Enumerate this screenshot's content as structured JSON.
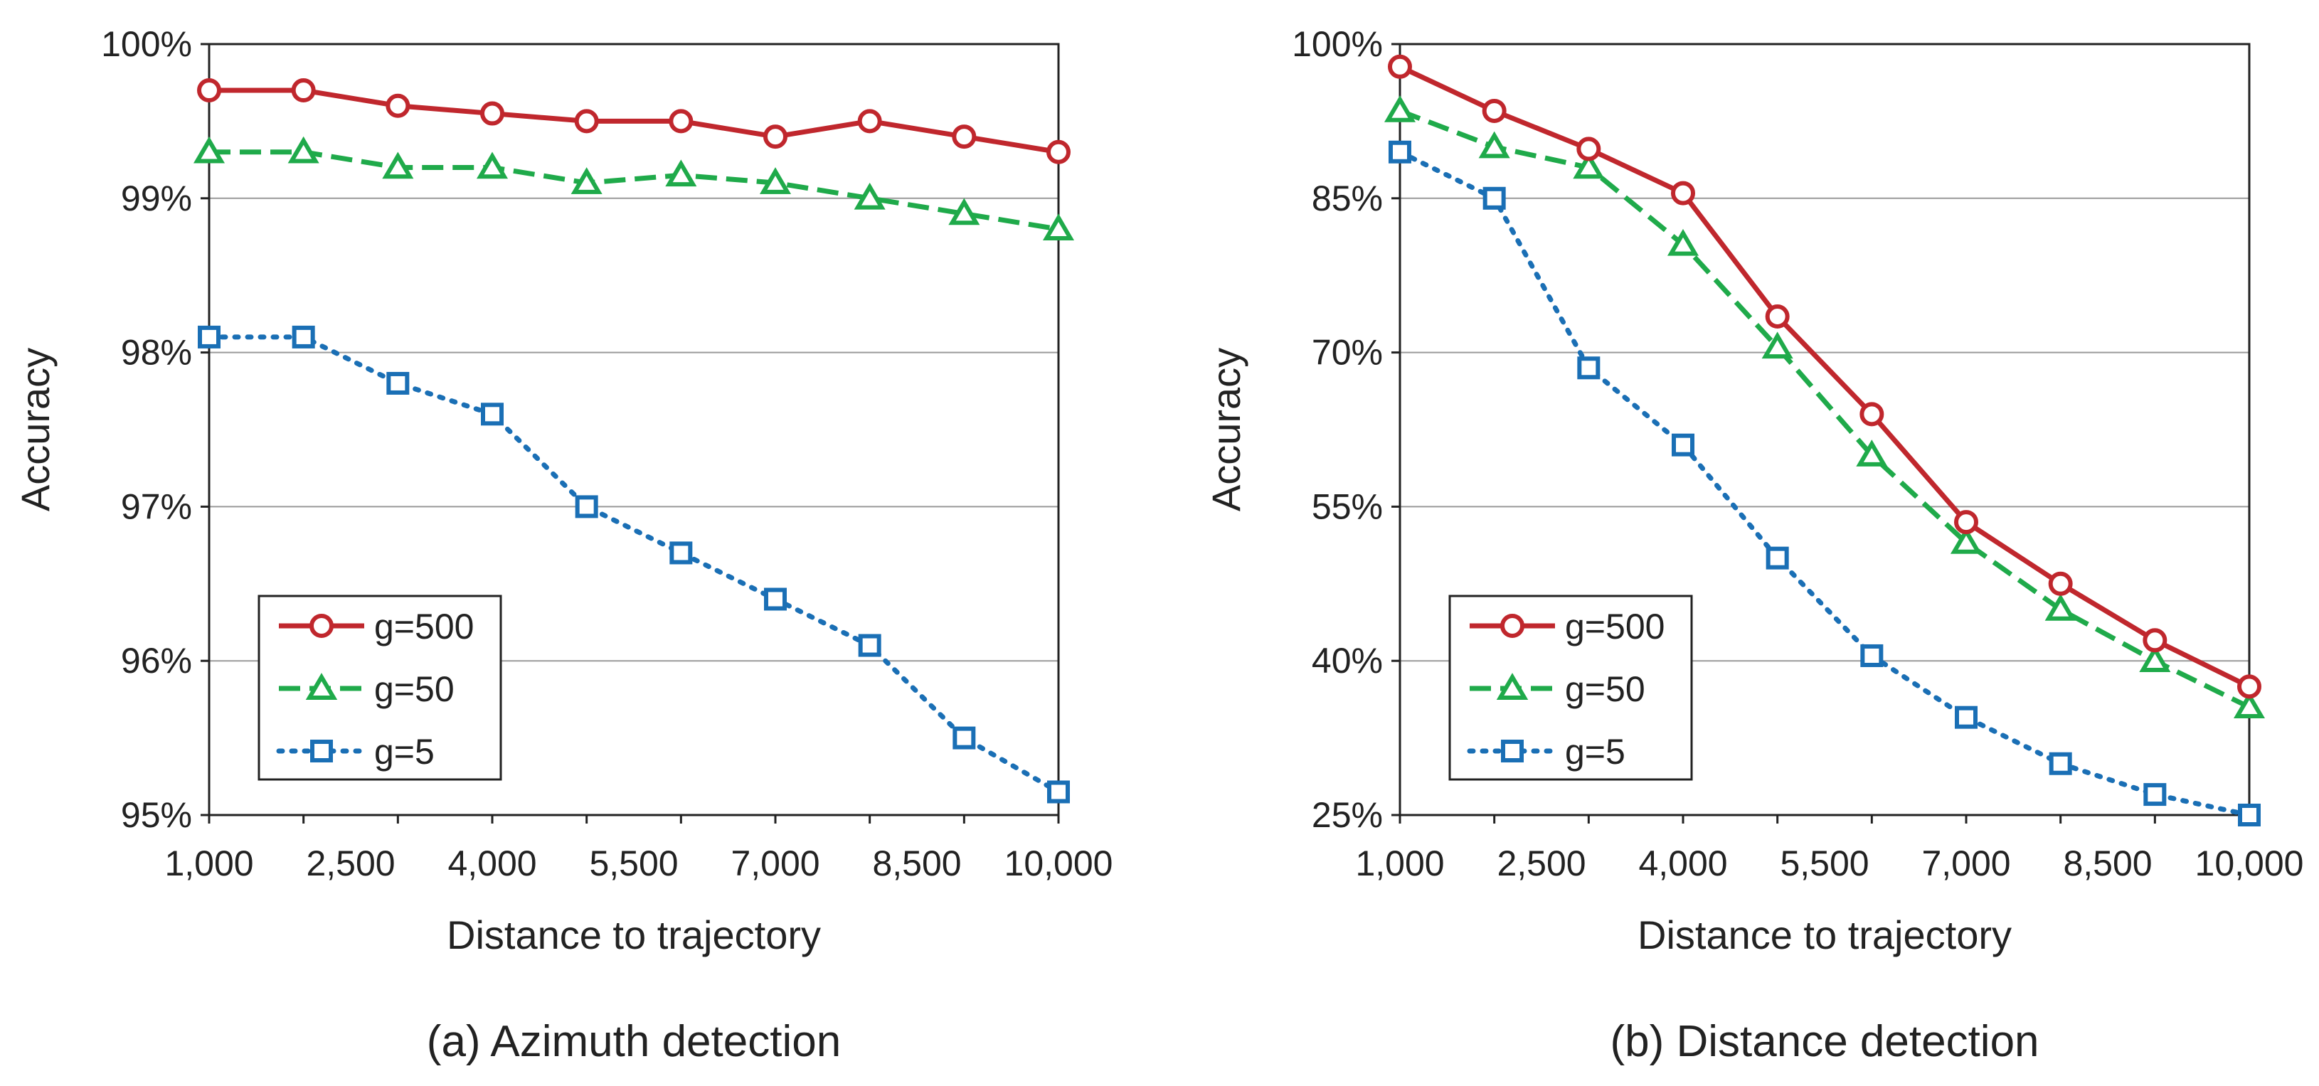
{
  "chart_data": [
    {
      "type": "line",
      "title": "",
      "caption": "(a) Azimuth detection",
      "xlabel": "Distance to trajectory",
      "ylabel": "Accuracy",
      "x": [
        1000,
        2000,
        3000,
        4000,
        5000,
        6000,
        7000,
        8000,
        9000,
        10000
      ],
      "xticks": [
        1000,
        2500,
        4000,
        5500,
        7000,
        8500,
        10000
      ],
      "xtick_labels": [
        "1,000",
        "2,500",
        "4,000",
        "5,500",
        "7,000",
        "8,500",
        "10,000"
      ],
      "xlim": [
        1000,
        10000
      ],
      "yticks": [
        95,
        96,
        97,
        98,
        99,
        100
      ],
      "ytick_labels": [
        "95%",
        "96%",
        "97%",
        "98%",
        "99%",
        "100%"
      ],
      "ylim": [
        95,
        100
      ],
      "grid": true,
      "legend_position": "bottom-left",
      "series": [
        {
          "name": "g=500",
          "color": "#c0272d",
          "marker": "circle",
          "dash": "solid",
          "values": [
            99.7,
            99.7,
            99.6,
            99.55,
            99.5,
            99.5,
            99.4,
            99.5,
            99.4,
            99.3
          ]
        },
        {
          "name": "g=50",
          "color": "#1faa4a",
          "marker": "triangle",
          "dash": "dashed",
          "values": [
            99.3,
            99.3,
            99.2,
            99.2,
            99.1,
            99.15,
            99.1,
            99.0,
            98.9,
            98.8
          ]
        },
        {
          "name": "g=5",
          "color": "#1a6fb5",
          "marker": "square",
          "dash": "dotted",
          "values": [
            98.1,
            98.1,
            97.8,
            97.6,
            97.0,
            96.7,
            96.4,
            96.1,
            95.5,
            95.15
          ]
        }
      ]
    },
    {
      "type": "line",
      "title": "",
      "caption": "(b) Distance detection",
      "xlabel": "Distance to trajectory",
      "ylabel": "Accuracy",
      "x": [
        1000,
        2000,
        3000,
        4000,
        5000,
        6000,
        7000,
        8000,
        9000,
        10000
      ],
      "xticks": [
        1000,
        2500,
        4000,
        5500,
        7000,
        8500,
        10000
      ],
      "xtick_labels": [
        "1,000",
        "2,500",
        "4,000",
        "5,500",
        "7,000",
        "8,500",
        "10,000"
      ],
      "xlim": [
        1000,
        10000
      ],
      "yticks": [
        25,
        40,
        55,
        70,
        85,
        100
      ],
      "ytick_labels": [
        "25%",
        "40%",
        "55%",
        "70%",
        "85%",
        "100%"
      ],
      "ylim": [
        25,
        100
      ],
      "grid": true,
      "legend_position": "bottom-left",
      "series": [
        {
          "name": "g=500",
          "color": "#c0272d",
          "marker": "circle",
          "dash": "solid",
          "values": [
            97.8,
            93.5,
            89.8,
            85.5,
            73.5,
            64.0,
            53.5,
            47.5,
            42.0,
            37.5
          ]
        },
        {
          "name": "g=50",
          "color": "#1faa4a",
          "marker": "triangle",
          "dash": "dashed",
          "values": [
            93.5,
            90.0,
            88.0,
            80.5,
            70.5,
            60.0,
            51.5,
            45.0,
            40.0,
            35.5
          ]
        },
        {
          "name": "g=5",
          "color": "#1a6fb5",
          "marker": "square",
          "dash": "dotted",
          "values": [
            89.5,
            85.0,
            68.5,
            61.0,
            50.0,
            40.5,
            34.5,
            30.0,
            27.0,
            25.0
          ]
        }
      ]
    }
  ]
}
